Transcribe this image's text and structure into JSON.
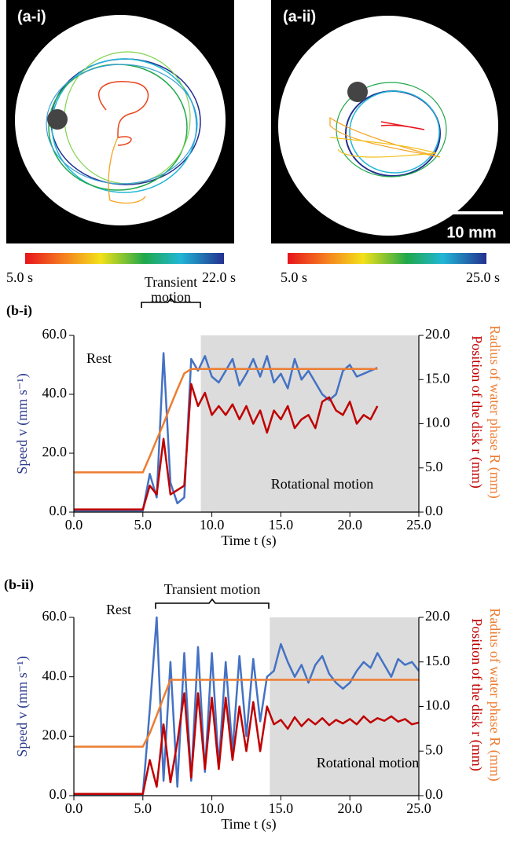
{
  "panels": [
    {
      "label": "(a-i)",
      "colorbar_labels": [
        "5.0 s",
        "22.0 s"
      ]
    },
    {
      "label": "(a-ii)",
      "colorbar_labels": [
        "5.0 s",
        "25.0 s"
      ],
      "scale_bar": "10 mm"
    }
  ],
  "chart_data": [
    {
      "type": "line",
      "panel_label": "(b-i)",
      "xlabel": "Time t (s)",
      "ylabel": "Speed v (mm s⁻¹)",
      "y2labels": [
        "Radius of water phase R (mm)",
        "Position of the disk r (mm)"
      ],
      "annotations": {
        "rest": "Rest",
        "transient": [
          "Transient",
          "motion"
        ],
        "rotational": "Rotational motion"
      },
      "shaded_xrange": [
        9.2,
        25.0
      ],
      "xlim": [
        0,
        25
      ],
      "ylim": [
        0,
        60
      ],
      "y2lim": [
        0,
        20
      ],
      "xticks": [
        {
          "value": 0,
          "label": "0.0"
        },
        {
          "value": 5,
          "label": "5.0"
        },
        {
          "value": 10,
          "label": "10.0"
        },
        {
          "value": 15,
          "label": "15.0"
        },
        {
          "value": 20,
          "label": "20.0"
        },
        {
          "value": 25,
          "label": "25.0"
        }
      ],
      "yticks": [
        {
          "value": 0,
          "label": "0.0"
        },
        {
          "value": 20,
          "label": "20.0"
        },
        {
          "value": 40,
          "label": "40.0"
        },
        {
          "value": 60,
          "label": "60.0"
        }
      ],
      "y2ticks": [
        {
          "value": 0,
          "label": "0.0"
        },
        {
          "value": 5,
          "label": "5.0"
        },
        {
          "value": 10,
          "label": "10.0"
        },
        {
          "value": 15,
          "label": "15.0"
        },
        {
          "value": 20,
          "label": "20.0"
        }
      ],
      "x": [
        0,
        0.5,
        1,
        1.5,
        2,
        2.5,
        3,
        3.5,
        4,
        4.5,
        5,
        5.5,
        6,
        6.5,
        7,
        7.5,
        8,
        8.5,
        9,
        9.5,
        10,
        10.5,
        11,
        11.5,
        12,
        12.5,
        13,
        13.5,
        14,
        14.5,
        15,
        15.5,
        16,
        16.5,
        17,
        17.5,
        18,
        18.5,
        19,
        19.5,
        20,
        20.5,
        21,
        21.5,
        22
      ],
      "series": [
        {
          "color": "#4472c4",
          "axis": "y",
          "values": [
            0.5,
            0.5,
            0.5,
            0.5,
            0.5,
            0.5,
            0.5,
            0.5,
            0.5,
            0.5,
            0.5,
            13,
            5,
            54,
            10,
            3,
            5,
            52,
            48,
            53,
            46,
            44,
            48,
            52,
            43,
            47,
            52,
            46,
            53,
            44,
            47,
            42,
            52,
            45,
            48,
            44,
            40,
            38,
            40,
            48,
            50,
            46,
            47,
            48,
            49
          ]
        },
        {
          "color": "#ed7d31",
          "axis": "y2",
          "values": [
            4.5,
            4.5,
            4.5,
            4.5,
            4.5,
            4.5,
            4.5,
            4.5,
            4.5,
            4.5,
            4.5,
            6.3,
            8.2,
            10,
            12,
            13.9,
            15.7,
            16.2,
            16.2,
            16.2,
            16.2,
            16.2,
            16.2,
            16.2,
            16.2,
            16.2,
            16.2,
            16.2,
            16.2,
            16.2,
            16.2,
            16.2,
            16.2,
            16.2,
            16.2,
            16.2,
            16.2,
            16.2,
            16.2,
            16.2,
            16.2,
            16.2,
            16.2,
            16.2,
            16.2
          ]
        },
        {
          "color": "#c00000",
          "axis": "y2",
          "values": [
            0.3,
            0.3,
            0.3,
            0.3,
            0.3,
            0.3,
            0.3,
            0.3,
            0.3,
            0.3,
            0.3,
            3,
            2,
            8.3,
            2,
            2.5,
            3,
            14.5,
            12,
            13.5,
            11,
            12,
            11,
            12.2,
            10.5,
            12,
            10,
            11.5,
            9,
            11.5,
            10.5,
            12,
            9.5,
            10.5,
            11,
            9.5,
            12.5,
            13,
            11.5,
            11,
            12.5,
            10,
            11,
            10.5,
            12
          ]
        }
      ]
    },
    {
      "type": "line",
      "panel_label": "(b-ii)",
      "xlabel": "Time t (s)",
      "ylabel": "Speed v (mm s⁻¹)",
      "y2labels": [
        "Radius of water phase R (mm)",
        "Position of the disk r (mm)"
      ],
      "annotations": {
        "rest": "Rest",
        "transient": [
          "Transient motion"
        ],
        "rotational": "Rotational motion"
      },
      "shaded_xrange": [
        14.2,
        25.0
      ],
      "xlim": [
        0,
        25
      ],
      "ylim": [
        0,
        60
      ],
      "y2lim": [
        0,
        20
      ],
      "xticks": [
        {
          "value": 0,
          "label": "0.0"
        },
        {
          "value": 5,
          "label": "5.0"
        },
        {
          "value": 10,
          "label": "10.0"
        },
        {
          "value": 15,
          "label": "15.0"
        },
        {
          "value": 20,
          "label": "20.0"
        },
        {
          "value": 25,
          "label": "25.0"
        }
      ],
      "yticks": [
        {
          "value": 0,
          "label": "0.0"
        },
        {
          "value": 20,
          "label": "20.0"
        },
        {
          "value": 40,
          "label": "40.0"
        },
        {
          "value": 60,
          "label": "60.0"
        }
      ],
      "y2ticks": [
        {
          "value": 0,
          "label": "0.0"
        },
        {
          "value": 5,
          "label": "5.0"
        },
        {
          "value": 10,
          "label": "10.0"
        },
        {
          "value": 15,
          "label": "15.0"
        },
        {
          "value": 20,
          "label": "20.0"
        }
      ],
      "x": [
        0,
        0.5,
        1,
        1.5,
        2,
        2.5,
        3,
        3.5,
        4,
        4.5,
        5,
        5.5,
        6,
        6.5,
        7,
        7.5,
        8,
        8.5,
        9,
        9.5,
        10,
        10.5,
        11,
        11.5,
        12,
        12.5,
        13,
        13.5,
        14,
        14.5,
        15,
        15.5,
        16,
        16.5,
        17,
        17.5,
        18,
        18.5,
        19,
        19.5,
        20,
        20.5,
        21,
        21.5,
        22,
        22.5,
        23,
        23.5,
        24,
        24.5,
        25
      ],
      "series": [
        {
          "color": "#4472c4",
          "axis": "y",
          "values": [
            0.5,
            0.5,
            0.5,
            0.5,
            0.5,
            0.5,
            0.5,
            0.5,
            0.5,
            0.5,
            0.5,
            29,
            60,
            5,
            45,
            3,
            48,
            5,
            50,
            8,
            48,
            10,
            45,
            15,
            47,
            20,
            46,
            25,
            40,
            42,
            51,
            45,
            40,
            44,
            38,
            44,
            47,
            41,
            38,
            36,
            38,
            42,
            45,
            43,
            48,
            44,
            40,
            46,
            44,
            45,
            42
          ]
        },
        {
          "color": "#ed7d31",
          "axis": "y2",
          "values": [
            5.5,
            5.5,
            5.5,
            5.5,
            5.5,
            5.5,
            5.5,
            5.5,
            5.5,
            5.5,
            5.5,
            7,
            9,
            11,
            13,
            13,
            13,
            13,
            13,
            13,
            13,
            13,
            13,
            13,
            13,
            13,
            13,
            13,
            13,
            13,
            13,
            13,
            13,
            13,
            13,
            13,
            13,
            13,
            13,
            13,
            13,
            13,
            13,
            13,
            13,
            13,
            13,
            13,
            13,
            13,
            13
          ]
        },
        {
          "color": "#c00000",
          "axis": "y2",
          "values": [
            0.2,
            0.2,
            0.2,
            0.2,
            0.2,
            0.2,
            0.2,
            0.2,
            0.2,
            0.2,
            0.2,
            4,
            1,
            8,
            1.5,
            6,
            11.5,
            2,
            11.5,
            3,
            11,
            3,
            11,
            4,
            10,
            5,
            10.5,
            5,
            10,
            8,
            8.5,
            7.5,
            8.8,
            7.8,
            8.6,
            8,
            8.7,
            7.9,
            8.5,
            8.1,
            8.6,
            8,
            8.9,
            8.2,
            8.7,
            8.4,
            8.9,
            8.3,
            8.6,
            8,
            8.2
          ]
        }
      ]
    }
  ]
}
